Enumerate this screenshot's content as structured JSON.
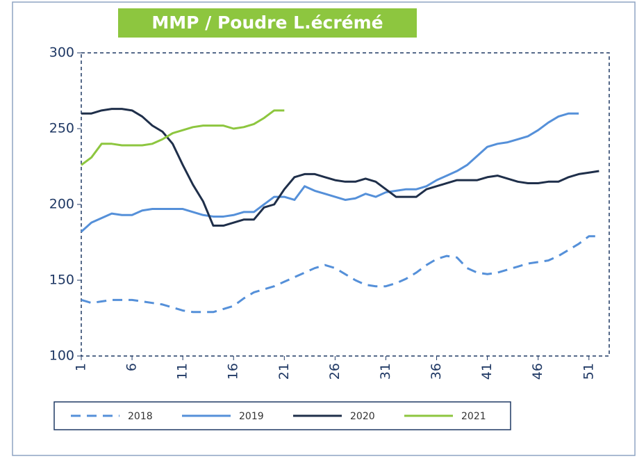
{
  "chart_data": {
    "type": "line",
    "title": "MMP  / Poudre L.écrémé",
    "x": [
      1,
      2,
      3,
      4,
      5,
      6,
      7,
      8,
      9,
      10,
      11,
      12,
      13,
      14,
      15,
      16,
      17,
      18,
      19,
      20,
      21,
      22,
      23,
      24,
      25,
      26,
      27,
      28,
      29,
      30,
      31,
      32,
      33,
      34,
      35,
      36,
      37,
      38,
      39,
      40,
      41,
      42,
      43,
      44,
      45,
      46,
      47,
      48,
      49,
      50,
      51,
      52
    ],
    "series": [
      {
        "name": "2018",
        "color": "#5590d9",
        "dashed": true,
        "values": [
          137,
          135,
          136,
          137,
          137,
          137,
          136,
          135,
          134,
          132,
          130,
          129,
          129,
          129,
          131,
          133,
          138,
          142,
          144,
          146,
          149,
          152,
          155,
          158,
          160,
          158,
          154,
          150,
          147,
          146,
          146,
          148,
          151,
          155,
          160,
          164,
          166,
          165,
          158,
          155,
          154,
          155,
          157,
          159,
          161,
          162,
          163,
          166,
          170,
          174,
          179,
          179
        ]
      },
      {
        "name": "2019",
        "color": "#5590d9",
        "dashed": false,
        "values": [
          182,
          188,
          191,
          194,
          193,
          193,
          196,
          197,
          197,
          197,
          197,
          195,
          193,
          192,
          192,
          193,
          195,
          195,
          200,
          205,
          205,
          203,
          212,
          209,
          207,
          205,
          203,
          204,
          207,
          205,
          208,
          209,
          210,
          210,
          212,
          216,
          219,
          222,
          226,
          232,
          238,
          240,
          241,
          243,
          245,
          249,
          254,
          258,
          260,
          260,
          null,
          null
        ]
      },
      {
        "name": "2020",
        "color": "#1f2f4a",
        "dashed": false,
        "values": [
          260,
          260,
          262,
          263,
          263,
          262,
          258,
          252,
          248,
          240,
          226,
          213,
          202,
          186,
          186,
          188,
          190,
          190,
          198,
          200,
          210,
          218,
          220,
          220,
          218,
          216,
          215,
          215,
          217,
          215,
          210,
          205,
          205,
          205,
          210,
          212,
          214,
          216,
          216,
          216,
          218,
          219,
          217,
          215,
          214,
          214,
          215,
          215,
          218,
          220,
          221,
          222
        ]
      },
      {
        "name": "2021",
        "color": "#8dc63f",
        "dashed": false,
        "values": [
          226,
          231,
          240,
          240,
          239,
          239,
          239,
          240,
          243,
          247,
          249,
          251,
          252,
          252,
          252,
          250,
          251,
          253,
          257,
          262,
          262,
          null,
          null,
          null,
          null,
          null,
          null,
          null,
          null,
          null,
          null,
          null,
          null,
          null,
          null,
          null,
          null,
          null,
          null,
          null,
          null,
          null,
          null,
          null,
          null,
          null,
          null,
          null,
          null,
          null,
          null,
          null
        ]
      }
    ],
    "xlim": [
      1,
      53
    ],
    "xticks": [
      1,
      6,
      11,
      16,
      21,
      26,
      31,
      36,
      41,
      46,
      51
    ],
    "ylim": [
      100,
      300
    ],
    "yticks": [
      100,
      150,
      200,
      250,
      300
    ],
    "legend": "bottom"
  }
}
